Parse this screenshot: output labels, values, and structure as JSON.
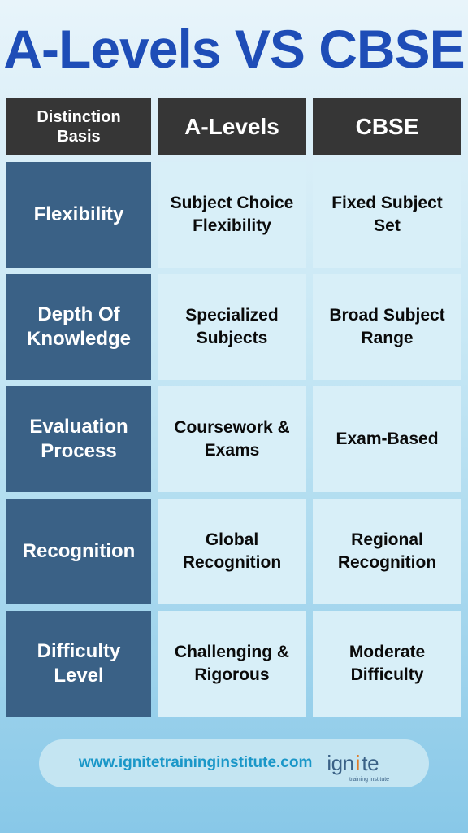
{
  "title": "A-Levels VS CBSE",
  "columns": {
    "basis": "Distinction Basis",
    "col1": "A-Levels",
    "col2": "CBSE"
  },
  "rows": [
    {
      "basis": "Flexibility",
      "col1": "Subject Choice Flexibility",
      "col2": "Fixed Subject Set"
    },
    {
      "basis": "Depth Of Knowledge",
      "col1": "Specialized Subjects",
      "col2": "Broad Subject Range"
    },
    {
      "basis": "Evaluation Process",
      "col1": "Coursework & Exams",
      "col2": "Exam-Based"
    },
    {
      "basis": "Recognition",
      "col1": "Global Recognition",
      "col2": "Regional Recognition"
    },
    {
      "basis": "Difficulty Level",
      "col1": "Challenging & Rigorous",
      "col2": "Moderate Difficulty"
    }
  ],
  "footer": {
    "url": "www.ignitetraininginstitute.com",
    "logo_main": "ign",
    "logo_accent": "i",
    "logo_end": "te",
    "logo_sub": "training institute"
  },
  "colors": {
    "title": "#1e4db7",
    "header_bg": "#363636",
    "basis_bg": "#3a6186",
    "value_bg": "#d8eff8",
    "footer_bg": "#c4e5f2",
    "url": "#1a97c8",
    "logo_accent": "#e07b28"
  }
}
